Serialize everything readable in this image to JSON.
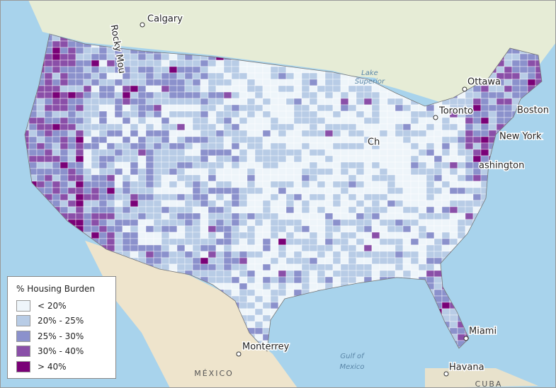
{
  "legend": {
    "title": "% Housing Burden",
    "items": [
      {
        "label": "< 20%",
        "color": "#eef5fa"
      },
      {
        "label": "20% - 25%",
        "color": "#b8cce6"
      },
      {
        "label": "25% - 30%",
        "color": "#8b91cc"
      },
      {
        "label": "30% - 40%",
        "color": "#8a4fa8"
      },
      {
        "label": "> 40%",
        "color": "#7a0177"
      }
    ]
  },
  "places": {
    "calgary": "Calgary",
    "rocky": "Rocky Mou",
    "ottawa": "Ottawa",
    "toronto": "Toronto",
    "boston": "Boston",
    "newyork": "New York",
    "chicago": "Ch",
    "washington": "ashington",
    "miami": "Miami",
    "havana": "Havana",
    "monterrey": "Monterrey"
  },
  "water": {
    "superior1": "Lake",
    "superior2": "Superior",
    "gulf1": "Gulf of",
    "gulf2": "Mexico"
  },
  "countries": {
    "mexico": "MÉXICO",
    "cuba": "CUBA"
  }
}
